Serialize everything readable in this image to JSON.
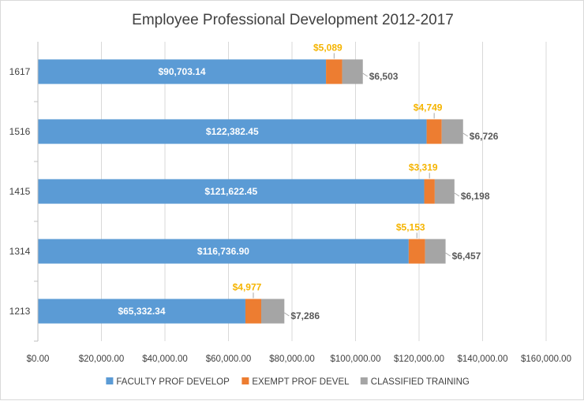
{
  "chart_data": {
    "type": "bar",
    "orientation": "horizontal",
    "stacked": true,
    "title": "Employee Professional Development 2012-2017",
    "categories": [
      "1213",
      "1314",
      "1415",
      "1516",
      "1617"
    ],
    "series": [
      {
        "name": "FACULTY PROF DEVELOP",
        "color": "#5b9bd5",
        "values": [
          65332.34,
          116736.9,
          121622.45,
          122382.45,
          90703.14
        ],
        "labels": [
          "$65,332.34",
          "$116,736.90",
          "$121,622.45",
          "$122,382.45",
          "$90,703.14"
        ]
      },
      {
        "name": "EXEMPT PROF DEVEL",
        "color": "#ed7d31",
        "values": [
          4977,
          5153,
          3319,
          4749,
          5089
        ],
        "labels": [
          "$4,977",
          "$5,153",
          "$3,319",
          "$4,749",
          "$5,089"
        ]
      },
      {
        "name": "CLASSIFIED TRAINING",
        "color": "#a5a5a5",
        "values": [
          7286,
          6457,
          6198,
          6726,
          6503
        ],
        "labels": [
          "$7,286",
          "$6,457",
          "$6,198",
          "$6,726",
          "$6,503"
        ]
      }
    ],
    "xlim": [
      0,
      160000
    ],
    "x_ticks": [
      0,
      20000,
      40000,
      60000,
      80000,
      100000,
      120000,
      140000,
      160000
    ],
    "x_tick_labels": [
      "$0.00",
      "$20,000.00",
      "$40,000.00",
      "$60,000.00",
      "$80,000.00",
      "$100,000.00",
      "$120,000.00",
      "$140,000.00",
      "$160,000.00"
    ],
    "grid": true,
    "legend_position": "bottom",
    "xlabel": "",
    "ylabel": ""
  }
}
